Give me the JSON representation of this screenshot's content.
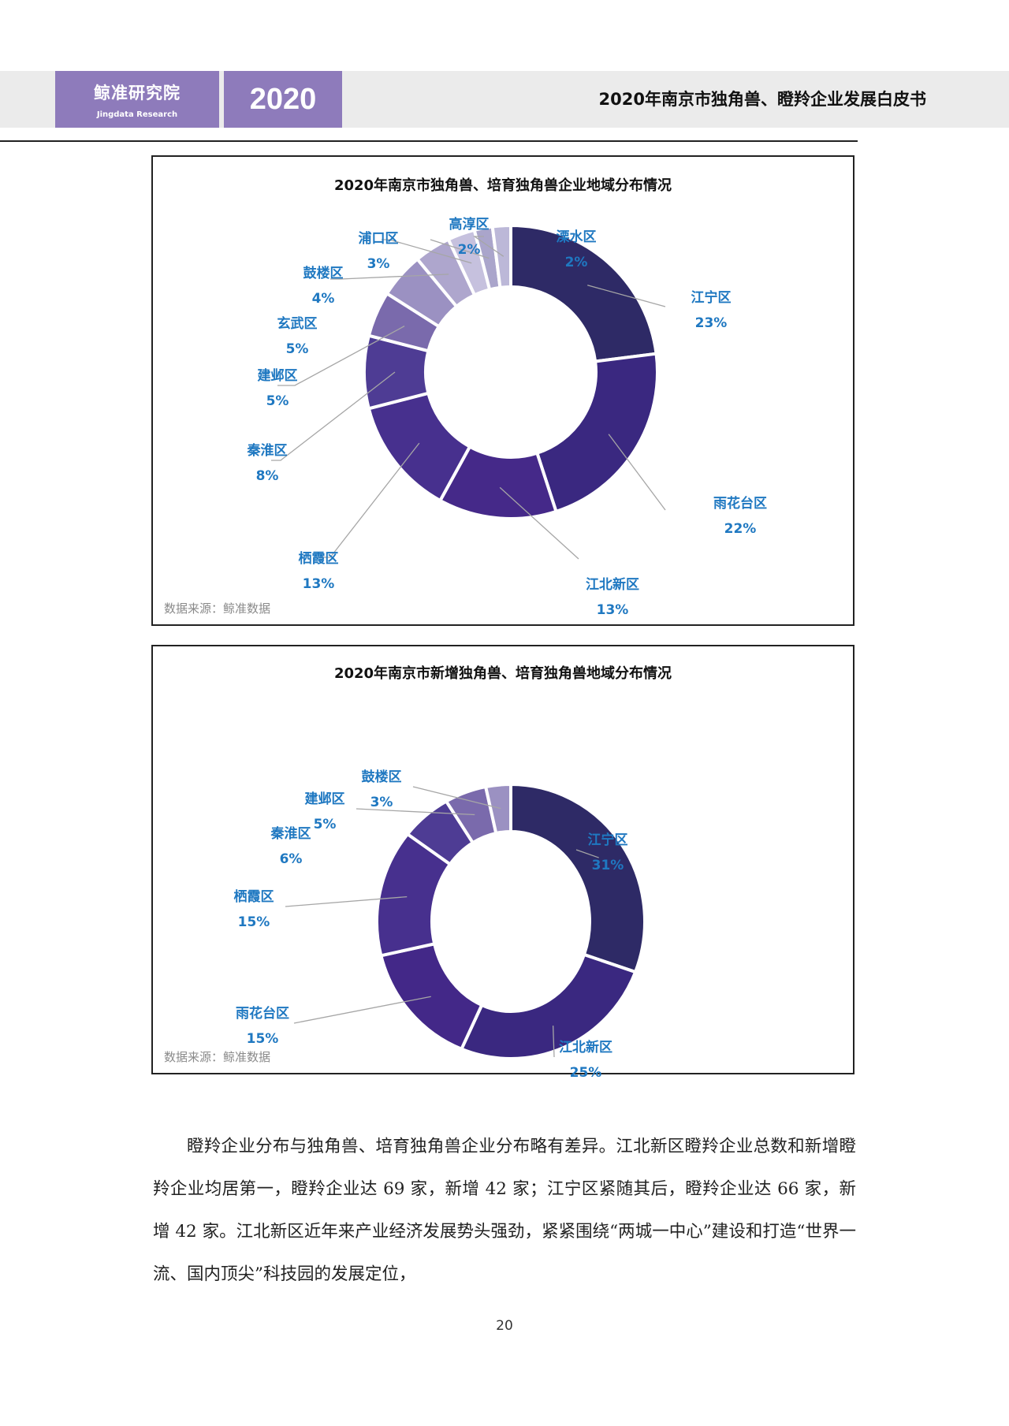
{
  "header": {
    "logo_cn": "鲸准研究院",
    "logo_en": "Jingdata Research",
    "year": "2020",
    "title": "2020年南京市独角兽、瞪羚企业发展白皮书",
    "brand_color": "#8e7bbb"
  },
  "chart_data": [
    {
      "type": "pie",
      "subtype": "donut",
      "title": "2020年南京市独角兽、培育独角兽企业地域分布情况",
      "source": "数据来源：鲸准数据",
      "categories": [
        "江宁区",
        "雨花台区",
        "江北新区",
        "栖霞区",
        "秦淮区",
        "建邺区",
        "玄武区",
        "鼓楼区",
        "浦口区",
        "高淳区",
        "溧水区"
      ],
      "values": [
        23,
        22,
        13,
        13,
        8,
        5,
        5,
        4,
        3,
        2,
        2
      ],
      "unit": "%",
      "colors": [
        "#2e2a66",
        "#3a2880",
        "#452989",
        "#47308e",
        "#4e3c94",
        "#7a6aac",
        "#9b91c2",
        "#aea6cd",
        "#c6c1de",
        "#aaa5cb",
        "#bcb8d8"
      ],
      "label_color": "#1f78c1",
      "legend": "none (callout labels)"
    },
    {
      "type": "pie",
      "subtype": "donut",
      "title": "2020年南京市新增独角兽、培育独角兽地域分布情况",
      "source": "数据来源：鲸准数据",
      "categories": [
        "江宁区",
        "江北新区",
        "雨花台区",
        "栖霞区",
        "秦淮区",
        "建邺区",
        "鼓楼区"
      ],
      "values": [
        31,
        25,
        15,
        15,
        6,
        5,
        3
      ],
      "unit": "%",
      "colors": [
        "#2e2a66",
        "#3a2880",
        "#432888",
        "#47308e",
        "#4e3c94",
        "#7a6aac",
        "#9b91c2"
      ],
      "label_color": "#1f78c1",
      "legend": "none (callout labels)"
    }
  ],
  "charts": {
    "c1": {
      "title": "2020年南京市独角兽、培育独角兽企业地域分布情况",
      "source": "数据来源：鲸准数据"
    },
    "c2": {
      "title": "2020年南京市新增独角兽、培育独角兽地域分布情况",
      "source": "数据来源：鲸准数据"
    }
  },
  "body": {
    "paragraph": "瞪羚企业分布与独角兽、培育独角兽企业分布略有差异。江北新区瞪羚企业总数和新增瞪羚企业均居第一，瞪羚企业达 69 家，新增 42 家；江宁区紧随其后，瞪羚企业达 66 家，新增 42 家。江北新区近年来产业经济发展势头强劲，紧紧围绕“两城一中心”建设和打造“世界一流、国内顶尖”科技园的发展定位，"
  },
  "page_number": "20"
}
